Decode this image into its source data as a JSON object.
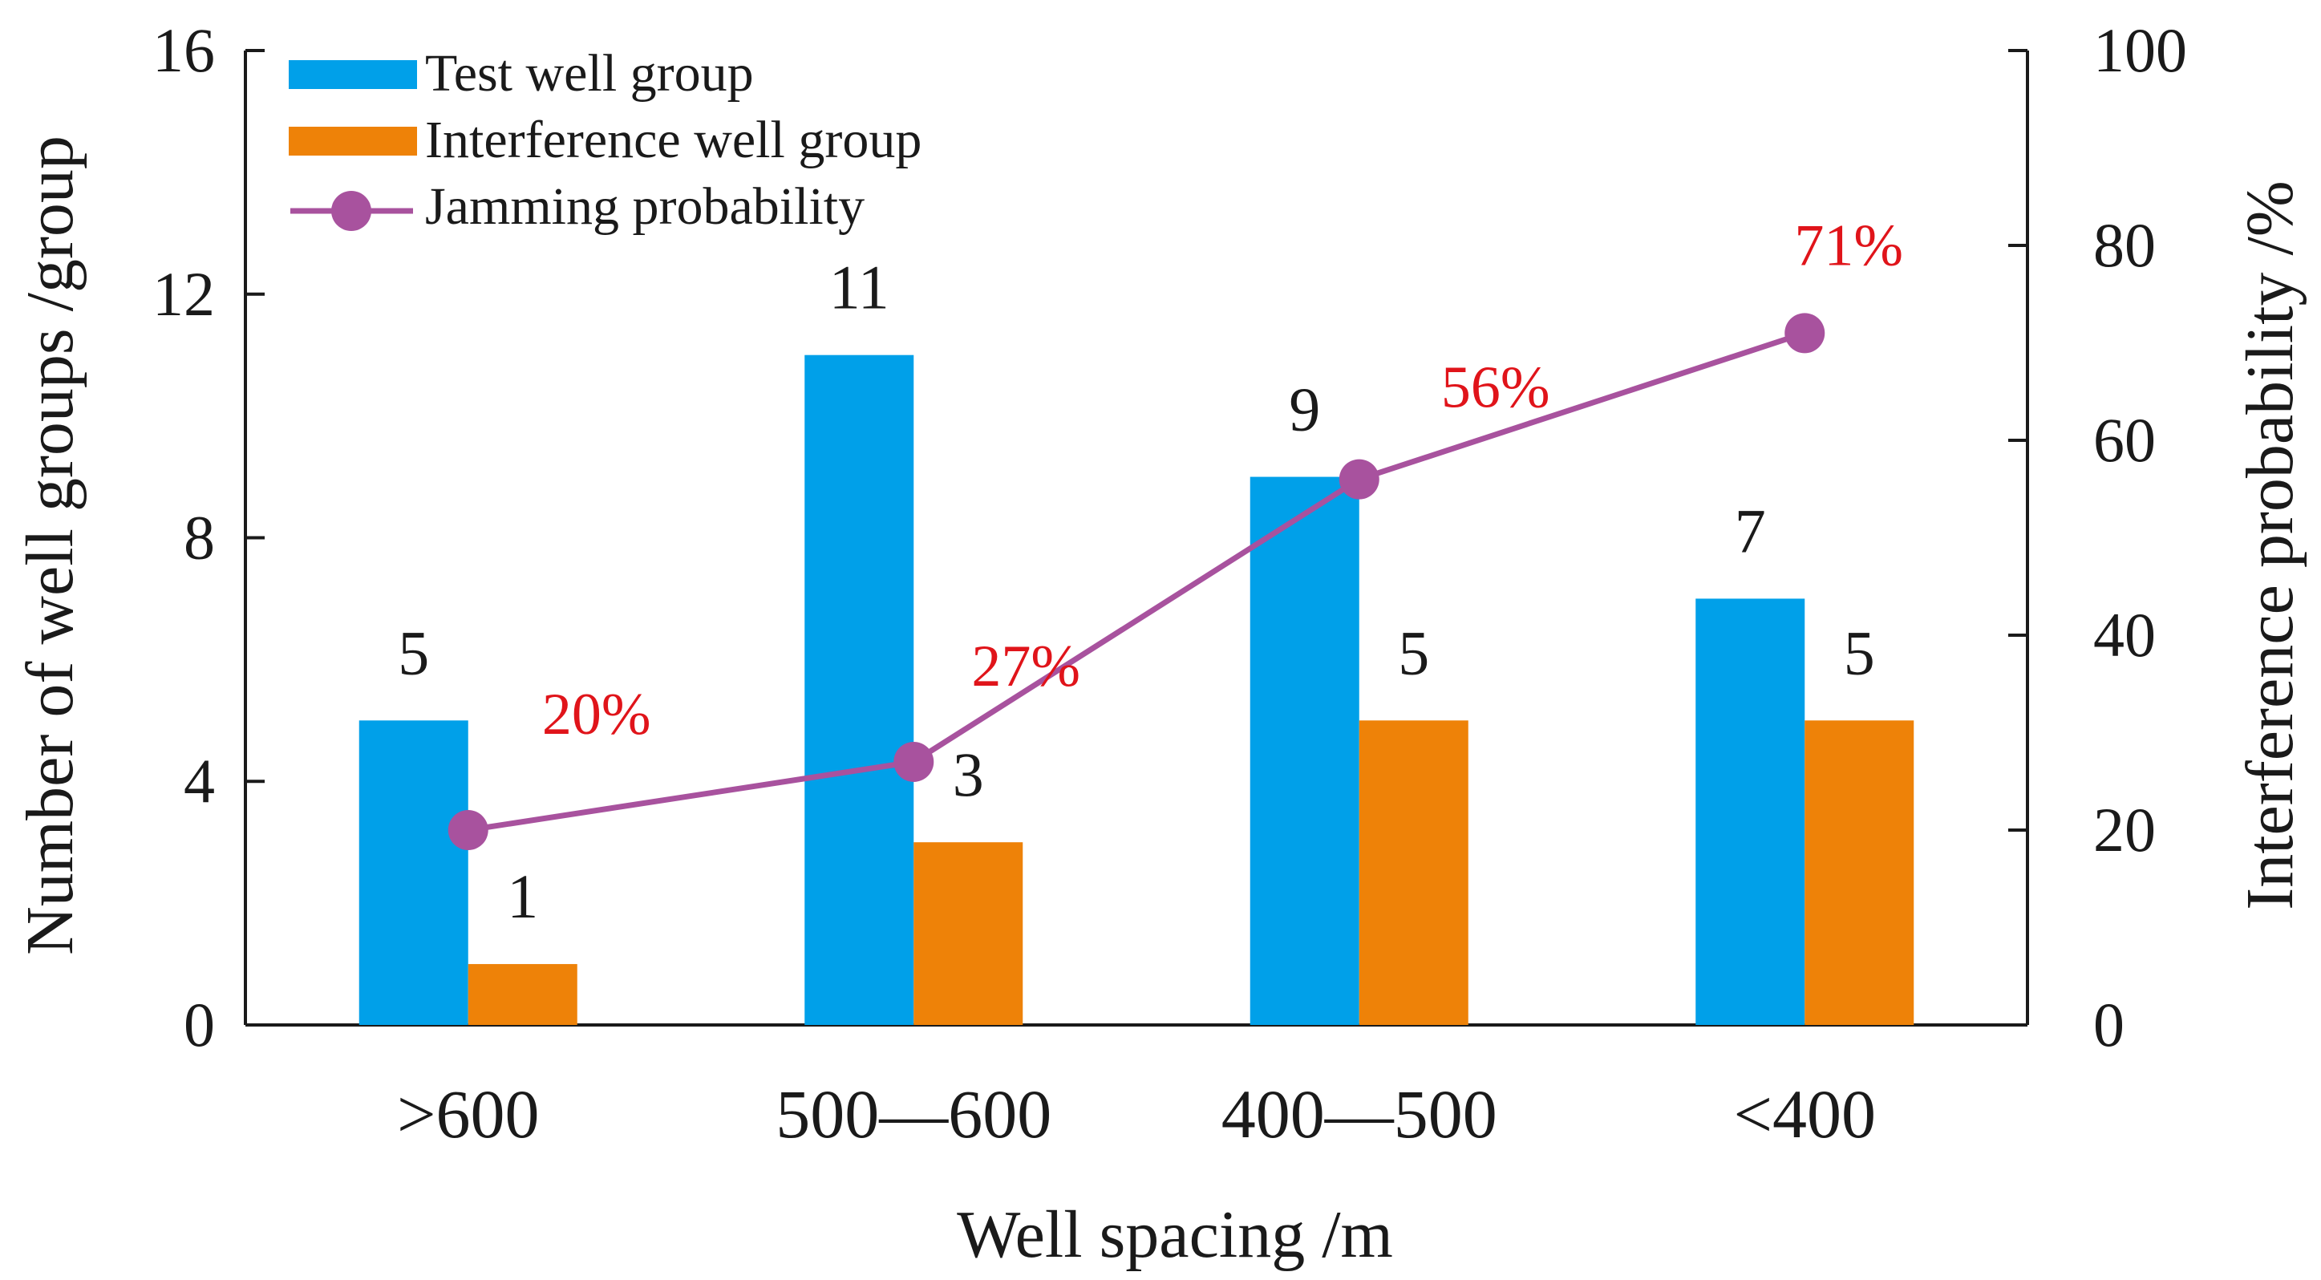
{
  "chart_data": {
    "type": "bar",
    "categories": [
      ">600",
      "500—600",
      "400—500",
      "<400"
    ],
    "series": [
      {
        "name": "Test well group",
        "axis": "left",
        "values": [
          5,
          11,
          9,
          7
        ],
        "color": "#00a0e9"
      },
      {
        "name": "Interference well group",
        "axis": "left",
        "values": [
          1,
          3,
          5,
          5
        ],
        "color": "#ee8208"
      },
      {
        "name": "Jamming probability",
        "axis": "right",
        "type": "line",
        "values": [
          20,
          27,
          56,
          71
        ],
        "labels": [
          "20%",
          "27%",
          "56%",
          "71%"
        ],
        "color": "#a8529e"
      }
    ],
    "xlabel": "Well spacing /m",
    "ylabel": "Number of well groups /group",
    "y2label": "Interference probability /%",
    "ylim": [
      0,
      16
    ],
    "y2lim": [
      0,
      100
    ],
    "yticks": [
      0,
      4,
      8,
      12,
      16
    ],
    "y2ticks": [
      0,
      20,
      40,
      60,
      80,
      100
    ],
    "legend_position": "top-left",
    "grid": false
  }
}
